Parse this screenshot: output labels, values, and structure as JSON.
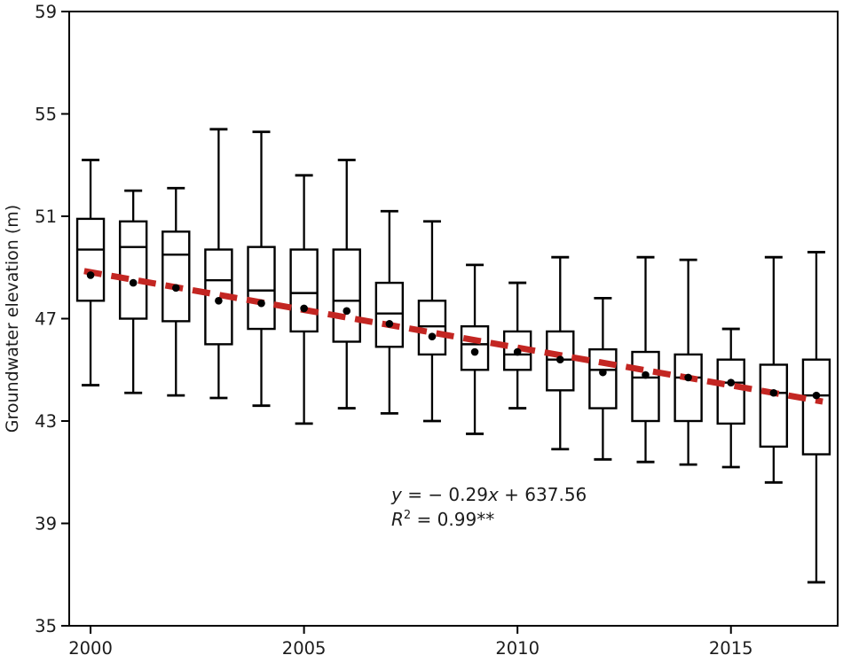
{
  "chart_data": {
    "type": "boxplot",
    "title": "",
    "xlabel": "",
    "ylabel": "Groundwater elevation (m)",
    "xlim": [
      1999.5,
      2017.5
    ],
    "ylim": [
      35,
      59
    ],
    "yticks": [
      "59",
      "55",
      "51",
      "47",
      "43",
      "39",
      "35"
    ],
    "ytick_values": [
      59,
      55,
      51,
      47,
      43,
      39,
      35
    ],
    "xticks": [
      "2000",
      "2005",
      "2010",
      "2015"
    ],
    "xtick_values": [
      2000,
      2005,
      2010,
      2015
    ],
    "grid": false,
    "legend": "none",
    "colors": {
      "box_stroke": "#000000",
      "box_fill": "#ffffff",
      "mean_dot": "#000000",
      "trend_red": "#c32622",
      "axis": "#000000",
      "text": "#1c1c1c"
    },
    "series": [
      {
        "year": 2000,
        "whisker_low": 44.4,
        "q1": 47.7,
        "median": 49.7,
        "q3": 50.9,
        "whisker_high": 53.2,
        "mean": 48.7
      },
      {
        "year": 2001,
        "whisker_low": 44.1,
        "q1": 47.0,
        "median": 49.8,
        "q3": 50.8,
        "whisker_high": 52.0,
        "mean": 48.4
      },
      {
        "year": 2002,
        "whisker_low": 44.0,
        "q1": 46.9,
        "median": 49.5,
        "q3": 50.4,
        "whisker_high": 52.1,
        "mean": 48.2
      },
      {
        "year": 2003,
        "whisker_low": 43.9,
        "q1": 46.0,
        "median": 48.5,
        "q3": 49.7,
        "whisker_high": 54.4,
        "mean": 47.7
      },
      {
        "year": 2004,
        "whisker_low": 43.6,
        "q1": 46.6,
        "median": 48.1,
        "q3": 49.8,
        "whisker_high": 54.3,
        "mean": 47.6
      },
      {
        "year": 2005,
        "whisker_low": 42.9,
        "q1": 46.5,
        "median": 48.0,
        "q3": 49.7,
        "whisker_high": 52.6,
        "mean": 47.4
      },
      {
        "year": 2006,
        "whisker_low": 43.5,
        "q1": 46.1,
        "median": 47.7,
        "q3": 49.7,
        "whisker_high": 53.2,
        "mean": 47.3
      },
      {
        "year": 2007,
        "whisker_low": 43.3,
        "q1": 45.9,
        "median": 47.2,
        "q3": 48.4,
        "whisker_high": 51.2,
        "mean": 46.8
      },
      {
        "year": 2008,
        "whisker_low": 43.0,
        "q1": 45.6,
        "median": 46.7,
        "q3": 47.7,
        "whisker_high": 50.8,
        "mean": 46.3
      },
      {
        "year": 2009,
        "whisker_low": 42.5,
        "q1": 45.0,
        "median": 46.0,
        "q3": 46.7,
        "whisker_high": 49.1,
        "mean": 45.7
      },
      {
        "year": 2010,
        "whisker_low": 43.5,
        "q1": 45.0,
        "median": 45.6,
        "q3": 46.5,
        "whisker_high": 48.4,
        "mean": 45.7
      },
      {
        "year": 2011,
        "whisker_low": 41.9,
        "q1": 44.2,
        "median": 45.4,
        "q3": 46.5,
        "whisker_high": 49.4,
        "mean": 45.4
      },
      {
        "year": 2012,
        "whisker_low": 41.5,
        "q1": 43.5,
        "median": 45.0,
        "q3": 45.8,
        "whisker_high": 47.8,
        "mean": 44.9
      },
      {
        "year": 2013,
        "whisker_low": 41.4,
        "q1": 43.0,
        "median": 44.7,
        "q3": 45.7,
        "whisker_high": 49.4,
        "mean": 44.8
      },
      {
        "year": 2014,
        "whisker_low": 41.3,
        "q1": 43.0,
        "median": 44.7,
        "q3": 45.6,
        "whisker_high": 49.3,
        "mean": 44.7
      },
      {
        "year": 2015,
        "whisker_low": 41.2,
        "q1": 42.9,
        "median": 44.5,
        "q3": 45.4,
        "whisker_high": 46.6,
        "mean": 44.5
      },
      {
        "year": 2016,
        "whisker_low": 40.6,
        "q1": 42.0,
        "median": 44.1,
        "q3": 45.2,
        "whisker_high": 49.4,
        "mean": 44.1
      },
      {
        "year": 2017,
        "whisker_low": 36.7,
        "q1": 41.7,
        "median": 44.0,
        "q3": 45.4,
        "whisker_high": 49.6,
        "mean": 44.0
      }
    ],
    "trend_line": {
      "style": "dashed",
      "color": "#c32622",
      "points": [
        {
          "x": 1999.85,
          "y": 48.86
        },
        {
          "x": 2017.15,
          "y": 43.76
        }
      ]
    },
    "annotation": {
      "equation_text": "y = − 0.29x + 637.56",
      "r_squared_text": "R2 = 0.99**",
      "eq_y": "y",
      "eq_mid": " = − 0.29",
      "eq_x": "x",
      "eq_rest": " + 637.56",
      "r_base": "R",
      "r_sup": "2",
      "r_rest": " = 0.99**"
    }
  }
}
